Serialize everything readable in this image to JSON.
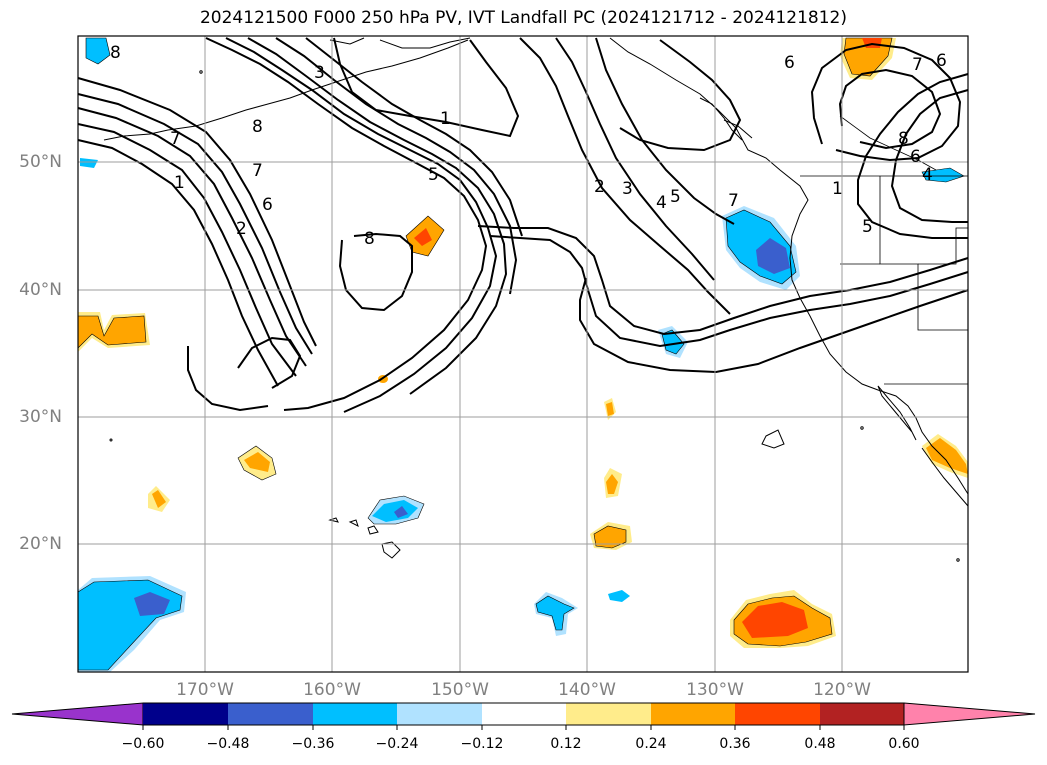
{
  "title": "2024121500 F000 250 hPa PV, IVT Landfall PC (2024121712 - 2024121812)",
  "axes": {
    "lon_labels": [
      "170°W",
      "160°W",
      "150°W",
      "140°W",
      "130°W",
      "120°W"
    ],
    "lat_labels": [
      "50°N",
      "40°N",
      "30°N",
      "20°N"
    ],
    "lon_range": [
      -180,
      -110
    ],
    "lat_range": [
      10,
      60
    ],
    "grid": true
  },
  "contour_labels": [
    "8",
    "8",
    "7",
    "7",
    "1",
    "6",
    "2",
    "3",
    "1",
    "5",
    "8",
    "2",
    "3",
    "4",
    "5",
    "7",
    "6",
    "7",
    "6",
    "8",
    "6",
    "4",
    "1",
    "5"
  ],
  "colorbar": {
    "ticks": [
      "−0.60",
      "−0.48",
      "−0.36",
      "−0.24",
      "−0.12",
      "0.12",
      "0.24",
      "0.36",
      "0.48",
      "0.60"
    ],
    "colors": [
      "#9933cc",
      "#00008b",
      "#3a5fcd",
      "#00bfff",
      "#b0e2ff",
      "#ffffff",
      "#ffec8b",
      "#ffa500",
      "#ff4500",
      "#b22222",
      "#ff82ab"
    ]
  }
}
